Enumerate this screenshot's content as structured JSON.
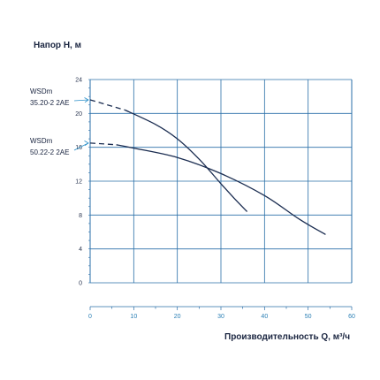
{
  "chart_data": {
    "type": "line",
    "title": "Напор H, м",
    "xlabel": "Производительность Q, м³/ч",
    "ylabel": "Напор H, м",
    "xlim": [
      0,
      60
    ],
    "ylim": [
      0,
      24
    ],
    "xticks": [
      "0",
      "10",
      "20",
      "30",
      "40",
      "50",
      "60"
    ],
    "yticks": [
      "0",
      "4",
      "8",
      "12",
      "16",
      "20",
      "24"
    ],
    "grid": true,
    "series": [
      {
        "name": "WSDm 35.20-2 2AE",
        "name_lines": [
          "WSDm",
          "35.20-2 2AE"
        ],
        "dashed_points": [
          [
            0,
            21.6
          ],
          [
            8,
            20.4
          ]
        ],
        "points": [
          [
            8,
            20.4
          ],
          [
            15,
            18.7
          ],
          [
            20,
            17.0
          ],
          [
            25,
            14.6
          ],
          [
            30,
            11.7
          ],
          [
            33,
            10.0
          ],
          [
            36,
            8.4
          ]
        ]
      },
      {
        "name": "WSDm 50.22-2 2AE",
        "name_lines": [
          "WSDm",
          "50.22-2 2AE"
        ],
        "dashed_points": [
          [
            0,
            16.5
          ],
          [
            6,
            16.3
          ]
        ],
        "points": [
          [
            6,
            16.3
          ],
          [
            10,
            15.9
          ],
          [
            20,
            14.8
          ],
          [
            30,
            12.9
          ],
          [
            40,
            10.3
          ],
          [
            48,
            7.5
          ],
          [
            54,
            5.7
          ]
        ]
      }
    ],
    "colors": {
      "line": "#1a2c50",
      "grid": "#2a6fa8",
      "arrow": "#2a8fc8"
    }
  }
}
